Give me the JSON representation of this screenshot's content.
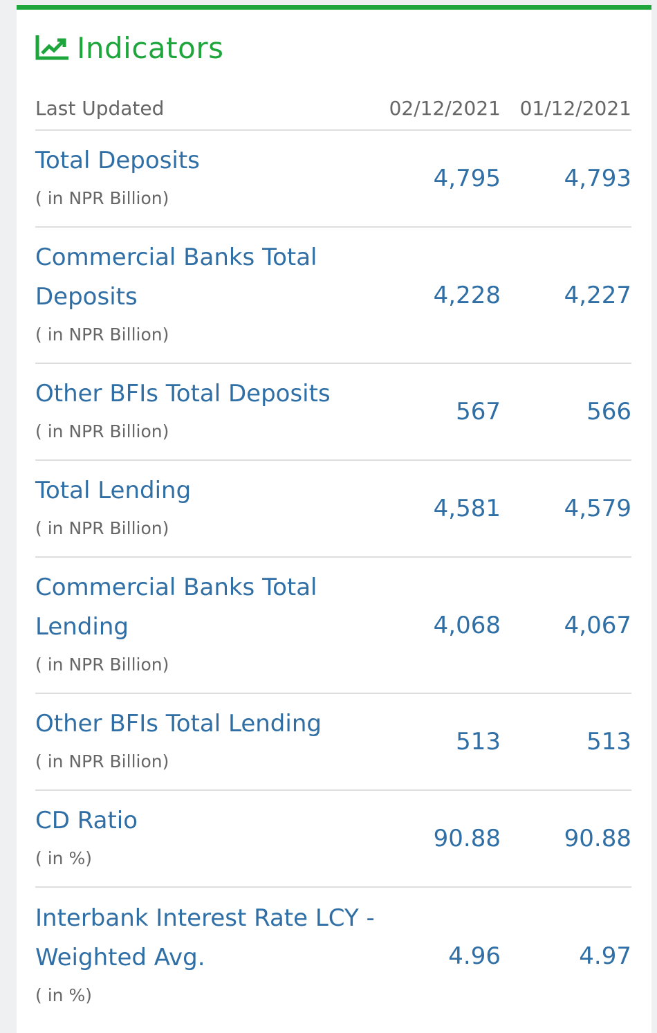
{
  "panel": {
    "title": "Indicators",
    "title_icon": "line-chart-icon",
    "accent_color": "#1ea53b"
  },
  "header": {
    "label": "Last Updated",
    "date1": "02/12/2021",
    "date2": "01/12/2021"
  },
  "rows": [
    {
      "label": "Total Deposits",
      "unit": "( in NPR Billion)",
      "v1": "4,795",
      "v2": "4,793"
    },
    {
      "label_line1": "Commercial Banks Total",
      "label_line2": "Deposits",
      "unit": "( in NPR Billion)",
      "v1": "4,228",
      "v2": "4,227"
    },
    {
      "label": "Other BFIs Total Deposits",
      "unit": "( in NPR Billion)",
      "v1": "567",
      "v2": "566"
    },
    {
      "label": "Total Lending",
      "unit": "( in NPR Billion)",
      "v1": "4,581",
      "v2": "4,579"
    },
    {
      "label_line1": "Commercial Banks Total",
      "label_line2": "Lending",
      "unit": "( in NPR Billion)",
      "v1": "4,068",
      "v2": "4,067"
    },
    {
      "label": "Other BFIs Total Lending",
      "unit": "( in NPR Billion)",
      "v1": "513",
      "v2": "513"
    },
    {
      "label": "CD Ratio",
      "unit": "( in %)",
      "v1": "90.88",
      "v2": "90.88"
    },
    {
      "label_line1": "Interbank Interest Rate LCY -",
      "label_line2": "Weighted Avg.",
      "unit": "( in %)",
      "v1": "4.96",
      "v2": "4.97"
    }
  ]
}
